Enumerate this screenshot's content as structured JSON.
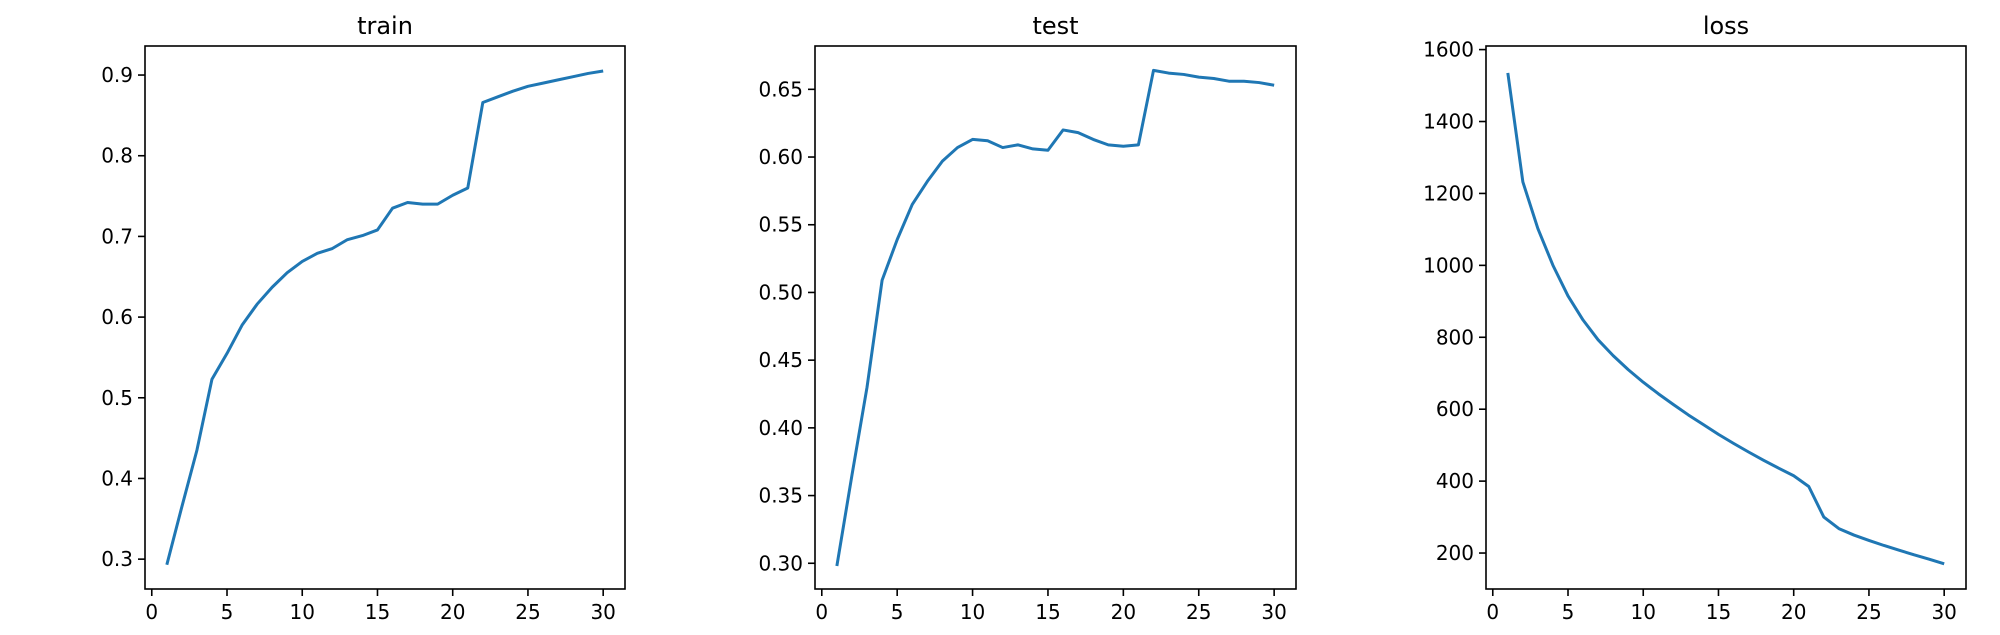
{
  "colors": {
    "series": "#1f77b4",
    "axes": "#000000",
    "background": "#ffffff"
  },
  "chart_data": [
    {
      "type": "line",
      "title": "train",
      "xlabel": "",
      "ylabel": "",
      "grid": false,
      "xlim": [
        -0.45,
        31.45
      ],
      "ylim": [
        0.263,
        0.936
      ],
      "xticks": [
        0,
        5,
        10,
        15,
        20,
        25,
        30
      ],
      "yticks": [
        0.3,
        0.4,
        0.5,
        0.6,
        0.7,
        0.8,
        0.9
      ],
      "xtick_labels": [
        "0",
        "5",
        "10",
        "15",
        "20",
        "25",
        "30"
      ],
      "ytick_labels": [
        "0.3",
        "0.4",
        "0.5",
        "0.6",
        "0.7",
        "0.8",
        "0.9"
      ],
      "x": [
        1,
        2,
        3,
        4,
        5,
        6,
        7,
        8,
        9,
        10,
        11,
        12,
        13,
        14,
        15,
        16,
        17,
        18,
        19,
        20,
        21,
        22,
        23,
        24,
        25,
        26,
        27,
        28,
        29,
        30
      ],
      "series": [
        {
          "values": [
            0.293,
            0.365,
            0.435,
            0.523,
            0.555,
            0.59,
            0.616,
            0.637,
            0.655,
            0.669,
            0.679,
            0.685,
            0.696,
            0.701,
            0.708,
            0.735,
            0.742,
            0.74,
            0.74,
            0.751,
            0.76,
            0.866,
            0.873,
            0.88,
            0.886,
            0.89,
            0.894,
            0.898,
            0.902,
            0.905
          ]
        }
      ]
    },
    {
      "type": "line",
      "title": "test",
      "xlabel": "",
      "ylabel": "",
      "grid": false,
      "xlim": [
        -0.45,
        31.45
      ],
      "ylim": [
        0.281,
        0.682
      ],
      "xticks": [
        0,
        5,
        10,
        15,
        20,
        25,
        30
      ],
      "yticks": [
        0.3,
        0.35,
        0.4,
        0.45,
        0.5,
        0.55,
        0.6,
        0.65
      ],
      "xtick_labels": [
        "0",
        "5",
        "10",
        "15",
        "20",
        "25",
        "30"
      ],
      "ytick_labels": [
        "0.30",
        "0.35",
        "0.40",
        "0.45",
        "0.50",
        "0.55",
        "0.60",
        "0.65"
      ],
      "x": [
        1,
        2,
        3,
        4,
        5,
        6,
        7,
        8,
        9,
        10,
        11,
        12,
        13,
        14,
        15,
        16,
        17,
        18,
        19,
        20,
        21,
        22,
        23,
        24,
        25,
        26,
        27,
        28,
        29,
        30
      ],
      "series": [
        {
          "values": [
            0.298,
            0.365,
            0.43,
            0.509,
            0.539,
            0.565,
            0.582,
            0.597,
            0.607,
            0.613,
            0.612,
            0.607,
            0.609,
            0.606,
            0.605,
            0.62,
            0.618,
            0.613,
            0.609,
            0.608,
            0.609,
            0.664,
            0.662,
            0.661,
            0.659,
            0.658,
            0.656,
            0.656,
            0.655,
            0.653
          ]
        }
      ]
    },
    {
      "type": "line",
      "title": "loss",
      "xlabel": "",
      "ylabel": "",
      "grid": false,
      "xlim": [
        -0.45,
        31.45
      ],
      "ylim": [
        100,
        1610
      ],
      "xticks": [
        0,
        5,
        10,
        15,
        20,
        25,
        30
      ],
      "yticks": [
        200,
        400,
        600,
        800,
        1000,
        1200,
        1400,
        1600
      ],
      "xtick_labels": [
        "0",
        "5",
        "10",
        "15",
        "20",
        "25",
        "30"
      ],
      "ytick_labels": [
        "200",
        "400",
        "600",
        "800",
        "1000",
        "1200",
        "1400",
        "1600"
      ],
      "x": [
        1,
        2,
        3,
        4,
        5,
        6,
        7,
        8,
        9,
        10,
        11,
        12,
        13,
        14,
        15,
        16,
        17,
        18,
        19,
        20,
        21,
        22,
        23,
        24,
        25,
        26,
        27,
        28,
        29,
        30
      ],
      "series": [
        {
          "values": [
            1535,
            1232,
            1102,
            1000,
            915,
            848,
            793,
            749,
            710,
            675,
            643,
            613,
            584,
            557,
            530,
            505,
            481,
            458,
            436,
            415,
            385,
            300,
            268,
            250,
            235,
            221,
            208,
            195,
            183,
            170
          ]
        }
      ]
    }
  ]
}
